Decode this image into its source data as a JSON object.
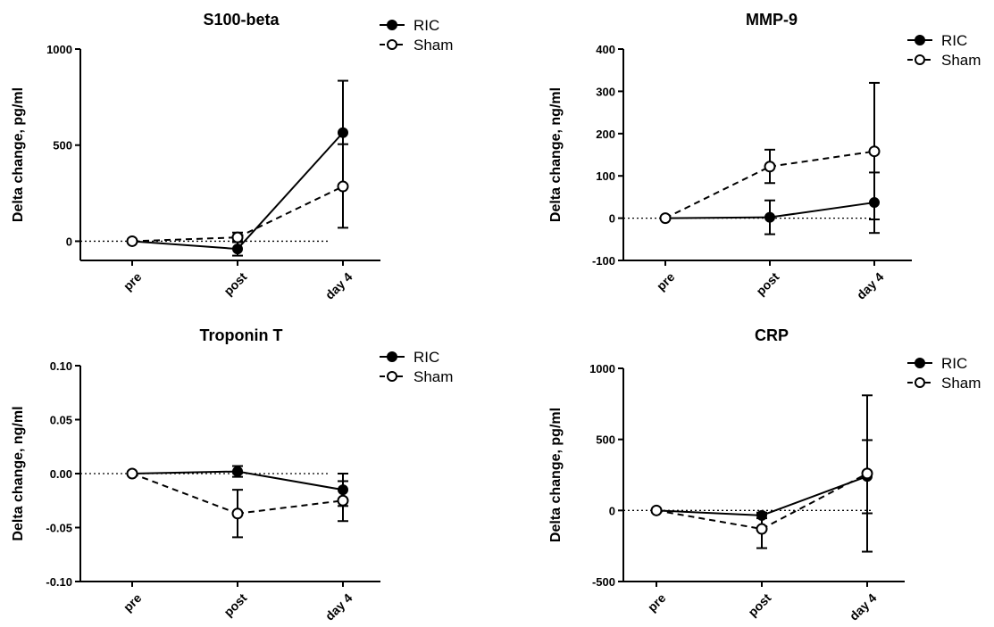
{
  "chart_data": [
    {
      "type": "line",
      "title": "S100-beta",
      "xlabel": "",
      "ylabel": "Delta change, pg/ml",
      "categories": [
        "pre",
        "post",
        "day 4"
      ],
      "ylim": [
        -100,
        1000
      ],
      "yticks": [
        "0",
        "500",
        "1000"
      ],
      "yticks_values": [
        0,
        500,
        1000
      ],
      "zero_line": true,
      "legend": "top-right",
      "series": [
        {
          "name": "RIC",
          "style": "solid",
          "marker": "filled",
          "values": [
            0,
            -40,
            565
          ],
          "err_low": [
            0,
            -75,
            295
          ],
          "err_high": [
            0,
            0,
            835
          ]
        },
        {
          "name": "Sham",
          "style": "dashed",
          "marker": "open",
          "values": [
            0,
            20,
            285
          ],
          "err_low": [
            0,
            -5,
            70
          ],
          "err_high": [
            0,
            45,
            505
          ]
        }
      ]
    },
    {
      "type": "line",
      "title": "MMP-9",
      "xlabel": "",
      "ylabel": "Delta change, ng/ml",
      "categories": [
        "pre",
        "post",
        "day 4"
      ],
      "ylim": [
        -100,
        400
      ],
      "yticks": [
        "-100",
        "0",
        "100",
        "200",
        "300",
        "400"
      ],
      "yticks_values": [
        -100,
        0,
        100,
        200,
        300,
        400
      ],
      "zero_line": true,
      "legend": "top-right",
      "series": [
        {
          "name": "RIC",
          "style": "solid",
          "marker": "filled",
          "values": [
            0,
            2,
            37
          ],
          "err_low": [
            0,
            -38,
            -35
          ],
          "err_high": [
            0,
            42,
            108
          ]
        },
        {
          "name": "Sham",
          "style": "dashed",
          "marker": "open",
          "values": [
            0,
            122,
            158
          ],
          "err_low": [
            0,
            83,
            -3
          ],
          "err_high": [
            0,
            162,
            320
          ]
        }
      ]
    },
    {
      "type": "line",
      "title": "Troponin T",
      "xlabel": "",
      "ylabel": "Delta change, ng/ml",
      "categories": [
        "pre",
        "post",
        "day 4"
      ],
      "ylim": [
        -0.1,
        0.1
      ],
      "yticks": [
        "-0.10",
        "-0.05",
        "0.00",
        "0.05",
        "0.10"
      ],
      "yticks_values": [
        -0.1,
        -0.05,
        0,
        0.05,
        0.1
      ],
      "zero_line": true,
      "legend": "top-right",
      "series": [
        {
          "name": "RIC",
          "style": "solid",
          "marker": "filled",
          "values": [
            0,
            0.002,
            -0.015
          ],
          "err_low": [
            0,
            -0.003,
            -0.03
          ],
          "err_high": [
            0,
            0.007,
            0
          ]
        },
        {
          "name": "Sham",
          "style": "dashed",
          "marker": "open",
          "values": [
            0,
            -0.037,
            -0.025
          ],
          "err_low": [
            0,
            -0.059,
            -0.044
          ],
          "err_high": [
            0,
            -0.015,
            -0.007
          ]
        }
      ]
    },
    {
      "type": "line",
      "title": "CRP",
      "xlabel": "",
      "ylabel": "Delta change, pg/ml",
      "categories": [
        "pre",
        "post",
        "day 4"
      ],
      "ylim": [
        -500,
        1000
      ],
      "yticks": [
        "-500",
        "0",
        "500",
        "1000"
      ],
      "yticks_values": [
        -500,
        0,
        500,
        1000
      ],
      "zero_line": true,
      "legend": "top-right",
      "series": [
        {
          "name": "RIC",
          "style": "solid",
          "marker": "filled",
          "values": [
            0,
            -35,
            240
          ],
          "err_low": [
            0,
            -55,
            -20
          ],
          "err_high": [
            0,
            -15,
            495
          ]
        },
        {
          "name": "Sham",
          "style": "dashed",
          "marker": "open",
          "values": [
            0,
            -130,
            260
          ],
          "err_low": [
            0,
            -265,
            -290
          ],
          "err_high": [
            0,
            -20,
            810
          ]
        }
      ]
    }
  ]
}
